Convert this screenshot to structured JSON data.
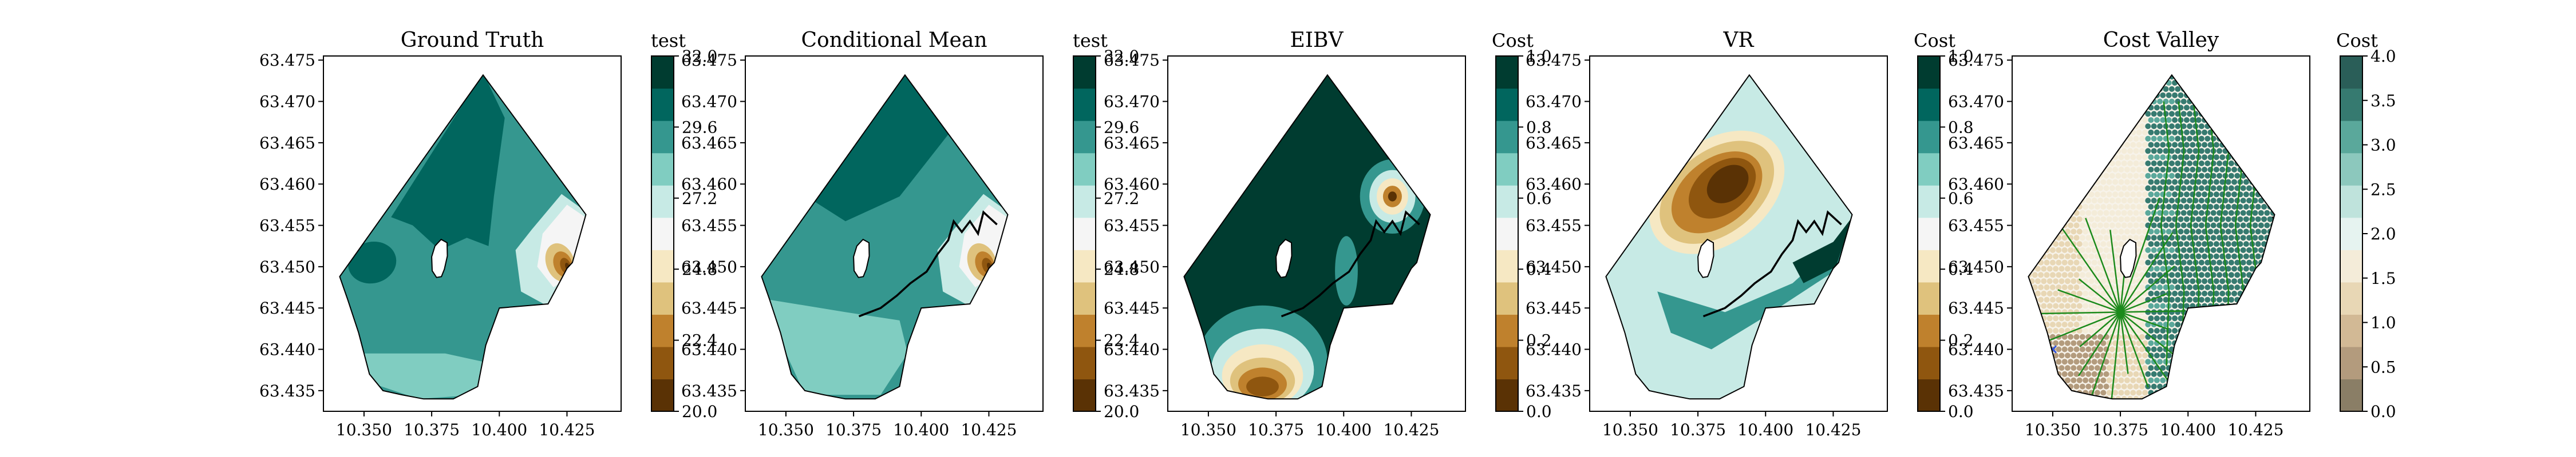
{
  "xlim": [
    10.335,
    10.445
  ],
  "ylim": [
    63.4325,
    63.4755
  ],
  "xticks": [
    "10.350",
    "10.375",
    "10.400",
    "10.425"
  ],
  "yticks": [
    "63.435",
    "63.440",
    "63.445",
    "63.450",
    "63.455",
    "63.460",
    "63.465",
    "63.470",
    "63.475"
  ],
  "boundary": [
    [
      10.341,
      63.4488
    ],
    [
      10.394,
      63.4732
    ],
    [
      10.432,
      63.4563
    ],
    [
      10.427,
      63.4505
    ],
    [
      10.425,
      63.4498
    ],
    [
      10.418,
      63.4455
    ],
    [
      10.4,
      63.445
    ],
    [
      10.395,
      63.4405
    ],
    [
      10.392,
      63.4355
    ],
    [
      10.383,
      63.434
    ],
    [
      10.372,
      63.434
    ],
    [
      10.364,
      63.4345
    ],
    [
      10.357,
      63.435
    ],
    [
      10.352,
      63.437
    ],
    [
      10.348,
      63.442
    ],
    [
      10.344,
      63.446
    ]
  ],
  "hole": [
    [
      10.3762,
      63.4525
    ],
    [
      10.3785,
      63.4533
    ],
    [
      10.3807,
      63.4529
    ],
    [
      10.3808,
      63.4513
    ],
    [
      10.3797,
      63.4497
    ],
    [
      10.3786,
      63.4488
    ],
    [
      10.3768,
      63.4487
    ],
    [
      10.3752,
      63.4495
    ],
    [
      10.375,
      63.4512
    ]
  ],
  "path": [
    [
      10.377,
      63.444
    ],
    [
      10.385,
      63.445
    ],
    [
      10.391,
      63.4465
    ],
    [
      10.396,
      63.448
    ],
    [
      10.402,
      63.4494
    ],
    [
      10.406,
      63.4515
    ],
    [
      10.41,
      63.4532
    ],
    [
      10.412,
      63.4555
    ],
    [
      10.415,
      63.4542
    ],
    [
      10.418,
      63.4555
    ],
    [
      10.421,
      63.454
    ],
    [
      10.423,
      63.4566
    ],
    [
      10.428,
      63.4551
    ]
  ],
  "chart_data": [
    {
      "type": "contour",
      "title": "Ground Truth",
      "colorbar": {
        "label": "test",
        "ticks": [
          "20.0",
          "22.4",
          "24.8",
          "27.2",
          "29.6",
          "32.0"
        ],
        "range": [
          20.0,
          32.0
        ]
      },
      "colors": [
        "#5a3205",
        "#8f560f",
        "#bf812d",
        "#dfc27d",
        "#f6e8c3",
        "#f5f5f5",
        "#c7eae5",
        "#80cdc1",
        "#35978f",
        "#01665e",
        "#003c30"
      ],
      "show_path": false
    },
    {
      "type": "contour",
      "title": "Conditional Mean",
      "colorbar": {
        "label": "test",
        "ticks": [
          "20.0",
          "22.4",
          "24.8",
          "27.2",
          "29.6",
          "32.0"
        ],
        "range": [
          20.0,
          32.0
        ]
      },
      "colors": [
        "#5a3205",
        "#8f560f",
        "#bf812d",
        "#dfc27d",
        "#f6e8c3",
        "#f5f5f5",
        "#c7eae5",
        "#80cdc1",
        "#35978f",
        "#01665e",
        "#003c30"
      ],
      "show_path": true
    },
    {
      "type": "contour",
      "title": "EIBV",
      "colorbar": {
        "label": "Cost",
        "ticks": [
          "0.0",
          "0.2",
          "0.4",
          "0.6",
          "0.8",
          "1.0"
        ],
        "range": [
          0.0,
          1.0
        ]
      },
      "colors": [
        "#5a3205",
        "#8f560f",
        "#bf812d",
        "#dfc27d",
        "#f6e8c3",
        "#f5f5f5",
        "#c7eae5",
        "#80cdc1",
        "#35978f",
        "#01665e",
        "#003c30"
      ],
      "show_path": true
    },
    {
      "type": "contour",
      "title": "VR",
      "colorbar": {
        "label": "Cost",
        "ticks": [
          "0.0",
          "0.2",
          "0.4",
          "0.6",
          "0.8",
          "1.0"
        ],
        "range": [
          0.0,
          1.0
        ]
      },
      "colors": [
        "#5a3205",
        "#8f560f",
        "#bf812d",
        "#dfc27d",
        "#f6e8c3",
        "#f5f5f5",
        "#c7eae5",
        "#80cdc1",
        "#35978f",
        "#01665e",
        "#003c30"
      ],
      "show_path": true
    },
    {
      "type": "scatter",
      "title": "Cost Valley",
      "colorbar": {
        "label": "Cost",
        "ticks": [
          "0.0",
          "0.5",
          "1.0",
          "1.5",
          "2.0",
          "2.5",
          "3.0",
          "3.5",
          "4.0"
        ],
        "range": [
          0.0,
          4.0
        ]
      },
      "colors": [
        "#8a7e66",
        "#b39b7d",
        "#d2b995",
        "#e8d7b5",
        "#f4ecd9",
        "#e6f3f0",
        "#bfe3dc",
        "#8cc8bd",
        "#5aa89b",
        "#367a70",
        "#2a5e58"
      ],
      "show_path": false
    }
  ]
}
